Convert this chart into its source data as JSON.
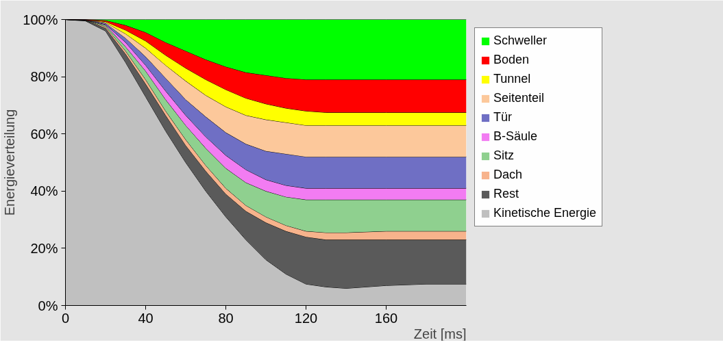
{
  "chart_data": {
    "type": "area",
    "stacked": true,
    "xlabel": "Zeit [ms]",
    "ylabel": "Energieverteilung",
    "x": [
      0,
      10,
      20,
      30,
      40,
      50,
      60,
      70,
      80,
      90,
      100,
      110,
      120,
      130,
      140,
      160,
      180,
      200
    ],
    "series": [
      {
        "name": "Kinetische Energie",
        "color": "#c0c0c0",
        "values": [
          100,
          99.5,
          96,
          85,
          73,
          61,
          50,
          40,
          31,
          23,
          16,
          11,
          7.5,
          6.5,
          6,
          7,
          7.5,
          7.5
        ]
      },
      {
        "name": "Rest",
        "color": "#5a5a5a",
        "values": [
          0,
          0.2,
          1,
          3,
          4.5,
          5.5,
          6,
          7,
          8,
          10,
          13,
          15,
          16.5,
          16.5,
          17,
          16,
          15.5,
          15.5
        ]
      },
      {
        "name": "Dach",
        "color": "#f7b38c",
        "values": [
          0,
          0,
          0.5,
          1,
          1.5,
          1.5,
          2,
          2,
          2,
          2,
          2,
          2,
          2,
          2.5,
          2.5,
          3,
          3,
          3
        ]
      },
      {
        "name": "Sitz",
        "color": "#8fd08f",
        "values": [
          0,
          0.1,
          0.5,
          1.5,
          3,
          4,
          5,
          6,
          7,
          8,
          9,
          10,
          11,
          11.5,
          11.5,
          11,
          11,
          11
        ]
      },
      {
        "name": "B-Säule",
        "color": "#f27cf2",
        "values": [
          0,
          0,
          0.3,
          1.5,
          2,
          3,
          3.5,
          4,
          4.5,
          4.5,
          4,
          4,
          4,
          4,
          4,
          4,
          4,
          4
        ]
      },
      {
        "name": "Tür",
        "color": "#6f6fc4",
        "values": [
          0,
          0.1,
          0.4,
          1.5,
          3,
          4.5,
          5.5,
          7,
          8,
          9,
          10,
          11,
          11,
          11,
          11,
          11,
          11,
          11
        ]
      },
      {
        "name": "Seitenteil",
        "color": "#fcc89b",
        "values": [
          0,
          0,
          0.3,
          1.5,
          3,
          4.5,
          6.5,
          7.5,
          9,
          10,
          11,
          11,
          11,
          11,
          11,
          11,
          11,
          11
        ]
      },
      {
        "name": "Tunnel",
        "color": "#ffff00",
        "values": [
          0,
          0,
          0.3,
          1.3,
          2.5,
          3.5,
          4.5,
          5.5,
          6,
          6,
          5.5,
          5,
          5,
          4.5,
          4.5,
          4.5,
          4.5,
          4.5
        ]
      },
      {
        "name": "Boden",
        "color": "#ff0000",
        "values": [
          0,
          0.1,
          0.4,
          1.7,
          3,
          4.5,
          6,
          7,
          8,
          9,
          10,
          10.5,
          11,
          11.5,
          11.5,
          11.5,
          11.5,
          11.5
        ]
      },
      {
        "name": "Schweller",
        "color": "#00ff00",
        "values": [
          0,
          0,
          0.3,
          2,
          4.5,
          8,
          11,
          14,
          16.5,
          18.5,
          19.5,
          20.5,
          21,
          21,
          21,
          21,
          21,
          21
        ]
      }
    ],
    "xlim": [
      0,
      200
    ],
    "ylim": [
      0,
      100
    ],
    "xticks": [
      0,
      40,
      80,
      120,
      160
    ],
    "yticks": [
      {
        "value": 0,
        "label": "0%"
      },
      {
        "value": 20,
        "label": "20%"
      },
      {
        "value": 40,
        "label": "40%"
      },
      {
        "value": 60,
        "label": "60%"
      },
      {
        "value": 80,
        "label": "80%"
      },
      {
        "value": 100,
        "label": "100%"
      }
    ],
    "legend": "right"
  }
}
